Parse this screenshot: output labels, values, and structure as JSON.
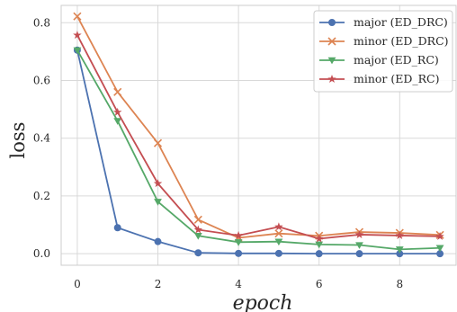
{
  "chart_data": {
    "type": "line",
    "title": "",
    "xlabel": "epoch",
    "ylabel": "loss",
    "xlim": [
      -0.4,
      9.4
    ],
    "ylim": [
      -0.04,
      0.86
    ],
    "xticks": [
      0,
      2,
      4,
      6,
      8
    ],
    "yticks": [
      0.0,
      0.2,
      0.4,
      0.6,
      0.8
    ],
    "grid": true,
    "legend_position": "top-right",
    "x": [
      0,
      1,
      2,
      3,
      4,
      5,
      6,
      7,
      8,
      9
    ],
    "series": [
      {
        "name": "major (ED_DRC)",
        "marker": "circle",
        "color": "#4c72b0",
        "values": [
          0.705,
          0.09,
          0.042,
          0.003,
          0.001,
          0.001,
          0.0,
          0.0,
          0.0,
          0.0
        ]
      },
      {
        "name": "minor (ED_DRC)",
        "marker": "x",
        "color": "#dd8452",
        "values": [
          0.822,
          0.56,
          0.383,
          0.118,
          0.055,
          0.07,
          0.062,
          0.075,
          0.072,
          0.065
        ]
      },
      {
        "name": "major (ED_RC)",
        "marker": "triangle-down",
        "color": "#55a868",
        "values": [
          0.705,
          0.46,
          0.18,
          0.062,
          0.04,
          0.042,
          0.032,
          0.03,
          0.015,
          0.02
        ]
      },
      {
        "name": "minor (ED_RC)",
        "marker": "star",
        "color": "#c44e52",
        "values": [
          0.757,
          0.49,
          0.243,
          0.083,
          0.063,
          0.093,
          0.052,
          0.066,
          0.063,
          0.06
        ]
      }
    ]
  }
}
